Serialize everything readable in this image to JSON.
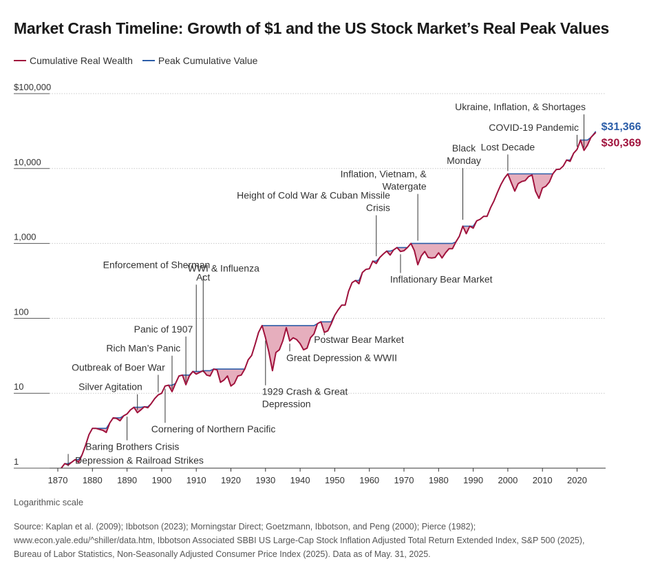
{
  "title": "Market Crash Timeline: Growth of $1 and the US Stock Market’s Real Peak Values",
  "legend": [
    {
      "label": "Cumulative Real Wealth",
      "color": "#a0123c"
    },
    {
      "label": "Peak Cumulative Value",
      "color": "#2b5da8"
    }
  ],
  "scale_note": "Logarithmic scale",
  "source_lines": [
    "Source: Kaplan et al. (2009); Ibbotson (2023); Morningstar Direct; Goetzmann, Ibbotson, and Peng (2000); Pierce (1982);",
    "www.econ.yale.edu/^shiller/data.htm, Ibbotson Associated SBBI US Large-Cap Stock Inflation Adjusted Total Return Extended Index, S&P 500 (2025),",
    "Bureau of Labor Statistics, Non-Seasonally Adjusted Consumer Price Index (2025). Data as of May. 31, 2025."
  ],
  "chart_data": {
    "type": "line",
    "y_scale": "log",
    "ylim": [
      1,
      100000
    ],
    "xlim": [
      1870,
      2026
    ],
    "y_ticks": [
      {
        "value": 1,
        "label": "1"
      },
      {
        "value": 10,
        "label": "10"
      },
      {
        "value": 100,
        "label": "100"
      },
      {
        "value": 1000,
        "label": "1,000"
      },
      {
        "value": 10000,
        "label": "10,000"
      },
      {
        "value": 100000,
        "label": "$100,000"
      }
    ],
    "x_ticks": [
      1870,
      1880,
      1890,
      1900,
      1910,
      1920,
      1930,
      1940,
      1950,
      1960,
      1970,
      1980,
      1990,
      2000,
      2010,
      2020
    ],
    "colors": {
      "wealth": "#a0123c",
      "peak": "#2b5da8",
      "drawdown_fill": "#e6aebd",
      "grid": "#c8c8c8"
    },
    "series": [
      {
        "name": "Cumulative Real Wealth",
        "points": [
          [
            1871,
            1.0
          ],
          [
            1872,
            1.15
          ],
          [
            1873,
            1.1
          ],
          [
            1874,
            1.2
          ],
          [
            1875,
            1.3
          ],
          [
            1876,
            1.2
          ],
          [
            1877,
            1.5
          ],
          [
            1878,
            2.0
          ],
          [
            1879,
            2.8
          ],
          [
            1880,
            3.4
          ],
          [
            1881,
            3.4
          ],
          [
            1882,
            3.3
          ],
          [
            1883,
            3.2
          ],
          [
            1884,
            3.0
          ],
          [
            1885,
            4.0
          ],
          [
            1886,
            4.7
          ],
          [
            1887,
            4.6
          ],
          [
            1888,
            4.3
          ],
          [
            1889,
            5.0
          ],
          [
            1890,
            5.3
          ],
          [
            1891,
            6.0
          ],
          [
            1892,
            6.5
          ],
          [
            1893,
            5.5
          ],
          [
            1894,
            6.0
          ],
          [
            1895,
            6.6
          ],
          [
            1896,
            6.4
          ],
          [
            1897,
            7.3
          ],
          [
            1898,
            8.5
          ],
          [
            1899,
            9.5
          ],
          [
            1900,
            10.0
          ],
          [
            1901,
            12.5
          ],
          [
            1902,
            12.8
          ],
          [
            1903,
            10.5
          ],
          [
            1904,
            13.5
          ],
          [
            1905,
            17.0
          ],
          [
            1906,
            17.5
          ],
          [
            1907,
            13.0
          ],
          [
            1908,
            17.0
          ],
          [
            1909,
            19.5
          ],
          [
            1910,
            18.0
          ],
          [
            1911,
            19.0
          ],
          [
            1912,
            20.0
          ],
          [
            1913,
            17.5
          ],
          [
            1914,
            17.0
          ],
          [
            1915,
            21.0
          ],
          [
            1916,
            20.5
          ],
          [
            1917,
            14.0
          ],
          [
            1918,
            15.0
          ],
          [
            1919,
            17.0
          ],
          [
            1920,
            12.5
          ],
          [
            1921,
            13.5
          ],
          [
            1922,
            17.0
          ],
          [
            1923,
            17.5
          ],
          [
            1924,
            21.0
          ],
          [
            1925,
            28.0
          ],
          [
            1926,
            32.0
          ],
          [
            1927,
            45.0
          ],
          [
            1928,
            65.0
          ],
          [
            1929,
            80.0
          ],
          [
            1930,
            55.0
          ],
          [
            1931,
            35.0
          ],
          [
            1932,
            20.0
          ],
          [
            1933,
            35.0
          ],
          [
            1934,
            38.0
          ],
          [
            1935,
            50.0
          ],
          [
            1936,
            75.0
          ],
          [
            1937,
            50.0
          ],
          [
            1938,
            55.0
          ],
          [
            1939,
            52.0
          ],
          [
            1940,
            46.0
          ],
          [
            1941,
            38.0
          ],
          [
            1942,
            40.0
          ],
          [
            1943,
            55.0
          ],
          [
            1944,
            62.0
          ],
          [
            1945,
            85.0
          ],
          [
            1946,
            90.0
          ],
          [
            1947,
            65.0
          ],
          [
            1948,
            68.0
          ],
          [
            1949,
            85.0
          ],
          [
            1950,
            110.0
          ],
          [
            1951,
            130.0
          ],
          [
            1952,
            150.0
          ],
          [
            1953,
            150.0
          ],
          [
            1954,
            230.0
          ],
          [
            1955,
            300.0
          ],
          [
            1956,
            320.0
          ],
          [
            1957,
            290.0
          ],
          [
            1958,
            410.0
          ],
          [
            1959,
            450.0
          ],
          [
            1960,
            460.0
          ],
          [
            1961,
            580.0
          ],
          [
            1962,
            540.0
          ],
          [
            1963,
            650.0
          ],
          [
            1964,
            720.0
          ],
          [
            1965,
            790.0
          ],
          [
            1966,
            700.0
          ],
          [
            1967,
            820.0
          ],
          [
            1968,
            880.0
          ],
          [
            1969,
            780.0
          ],
          [
            1970,
            800.0
          ],
          [
            1971,
            880.0
          ],
          [
            1972,
            1000.0
          ],
          [
            1973,
            800.0
          ],
          [
            1974,
            520.0
          ],
          [
            1975,
            680.0
          ],
          [
            1976,
            780.0
          ],
          [
            1977,
            650.0
          ],
          [
            1978,
            640.0
          ],
          [
            1979,
            650.0
          ],
          [
            1980,
            750.0
          ],
          [
            1981,
            640.0
          ],
          [
            1982,
            750.0
          ],
          [
            1983,
            850.0
          ],
          [
            1984,
            850.0
          ],
          [
            1985,
            1050.0
          ],
          [
            1986,
            1250.0
          ],
          [
            1987,
            1700.0
          ],
          [
            1988,
            1350.0
          ],
          [
            1989,
            1700.0
          ],
          [
            1990,
            1600.0
          ],
          [
            1991,
            2000.0
          ],
          [
            1992,
            2100.0
          ],
          [
            1993,
            2300.0
          ],
          [
            1994,
            2300.0
          ],
          [
            1995,
            3000.0
          ],
          [
            1996,
            3700.0
          ],
          [
            1997,
            4800.0
          ],
          [
            1998,
            6100.0
          ],
          [
            1999,
            7400.0
          ],
          [
            2000,
            8500.0
          ],
          [
            2001,
            6500.0
          ],
          [
            2002,
            5000.0
          ],
          [
            2003,
            6300.0
          ],
          [
            2004,
            6700.0
          ],
          [
            2005,
            6900.0
          ],
          [
            2006,
            7800.0
          ],
          [
            2007,
            8200.0
          ],
          [
            2008,
            5000.0
          ],
          [
            2009,
            4000.0
          ],
          [
            2010,
            5500.0
          ],
          [
            2011,
            5800.0
          ],
          [
            2012,
            6600.0
          ],
          [
            2013,
            8500.0
          ],
          [
            2014,
            9700.0
          ],
          [
            2015,
            9800.0
          ],
          [
            2016,
            10800.0
          ],
          [
            2017,
            13000.0
          ],
          [
            2018,
            12500.0
          ],
          [
            2019,
            16000.0
          ],
          [
            2020,
            18000.0
          ],
          [
            2021,
            24000.0
          ],
          [
            2022,
            17500.0
          ],
          [
            2023,
            20500.0
          ],
          [
            2024,
            26000.0
          ],
          [
            2025.4,
            30369.0
          ]
        ]
      },
      {
        "name": "Peak Cumulative Value",
        "end_value": 31366
      }
    ],
    "end_labels": [
      {
        "text": "$31,366",
        "value": 31366,
        "color": "#2b5da8"
      },
      {
        "text": "$30,369",
        "value": 30369,
        "color": "#a0123c"
      }
    ],
    "annotations": [
      {
        "year": 1873,
        "value": 1.15,
        "lines": [
          "Depression & Railroad Strikes"
        ],
        "label_year": 1875,
        "label_value": 1.15,
        "anchor": "start",
        "leader": "down"
      },
      {
        "year": 1890,
        "value": 5.3,
        "lines": [
          "Baring Brothers Crisis"
        ],
        "label_year": 1878,
        "label_value": 1.75,
        "anchor": "start",
        "leader": "down"
      },
      {
        "year": 1893,
        "value": 5.5,
        "lines": [
          "Silver Agitation"
        ],
        "label_year": 1876,
        "label_value": 11.0,
        "anchor": "start",
        "leader": "up"
      },
      {
        "year": 1899,
        "value": 9.5,
        "lines": [
          "Outbreak of Boer War"
        ],
        "label_year": 1874,
        "label_value": 20.0,
        "anchor": "start",
        "leader": "up"
      },
      {
        "year": 1901,
        "value": 12.5,
        "lines": [
          "Cornering of Northern Pacific"
        ],
        "label_year": 1897,
        "label_value": 3.0,
        "anchor": "start",
        "leader": "down"
      },
      {
        "year": 1903,
        "value": 10.5,
        "lines": [
          "Rich Man’s Panic"
        ],
        "label_year": 1884,
        "label_value": 36.0,
        "anchor": "start",
        "leader": "up"
      },
      {
        "year": 1907,
        "value": 13.0,
        "lines": [
          "Panic of 1907"
        ],
        "label_year": 1892,
        "label_value": 65.0,
        "anchor": "start",
        "leader": "up"
      },
      {
        "year": 1910,
        "value": 18.0,
        "lines": [
          "Enforcement of Sherman",
          "Act"
        ],
        "label_year": 1914,
        "label_value": 320.0,
        "anchor": "end",
        "leader": "up"
      },
      {
        "year": 1912,
        "value": 17.5,
        "lines": [
          "WWI & Influenza"
        ],
        "label_year": 1907.5,
        "label_value": 420.0,
        "anchor": "start",
        "leader": "up"
      },
      {
        "year": 1930,
        "value": 55.0,
        "lines": [
          "1929 Crash & Great",
          "Depression"
        ],
        "label_year": 1929,
        "label_value": 9.5,
        "anchor": "start",
        "leader": "down"
      },
      {
        "year": 1937,
        "value": 50.0,
        "lines": [
          "Great Depression & WWII"
        ],
        "label_year": 1936,
        "label_value": 27.0,
        "anchor": "start",
        "leader": "down"
      },
      {
        "year": 1947,
        "value": 65.0,
        "lines": [
          "Postwar Bear Market"
        ],
        "label_year": 1944,
        "label_value": 47.0,
        "anchor": "start",
        "leader": "down"
      },
      {
        "year": 1962,
        "value": 620.0,
        "lines": [
          "Height of Cold War & Cuban Missile",
          "Crisis"
        ],
        "label_year": 1966,
        "label_value": 2700.0,
        "anchor": "end",
        "leader": "up"
      },
      {
        "year": 1969,
        "value": 780.0,
        "lines": [
          "Inflationary Bear Market"
        ],
        "label_year": 1966,
        "label_value": 300.0,
        "anchor": "start",
        "leader": "down"
      },
      {
        "year": 1974,
        "value": 1000.0,
        "lines": [
          "Inflation, Vietnam, &",
          "Watergate"
        ],
        "label_year": 1976.5,
        "label_value": 5200.0,
        "anchor": "end",
        "leader": "up"
      },
      {
        "year": 1987,
        "value": 1900.0,
        "lines": [
          "Black",
          "Monday"
        ],
        "label_year": 1987.3,
        "label_value": 11500.0,
        "anchor": "middle",
        "leader": "up"
      },
      {
        "year": 2000,
        "value": 8500.0,
        "lines": [
          "Lost Decade"
        ],
        "label_year": 2000,
        "label_value": 17500.0,
        "anchor": "middle",
        "leader": "up"
      },
      {
        "year": 2020,
        "value": 18000.0,
        "lines": [
          "COVID-19 Pandemic"
        ],
        "label_year": 2020.5,
        "label_value": 32000.0,
        "anchor": "end",
        "leader": "up"
      },
      {
        "year": 2022,
        "value": 17500.0,
        "lines": [
          "Ukraine, Inflation, & Shortages"
        ],
        "label_year": 2022.5,
        "label_value": 60000.0,
        "anchor": "end",
        "leader": "up"
      }
    ]
  }
}
